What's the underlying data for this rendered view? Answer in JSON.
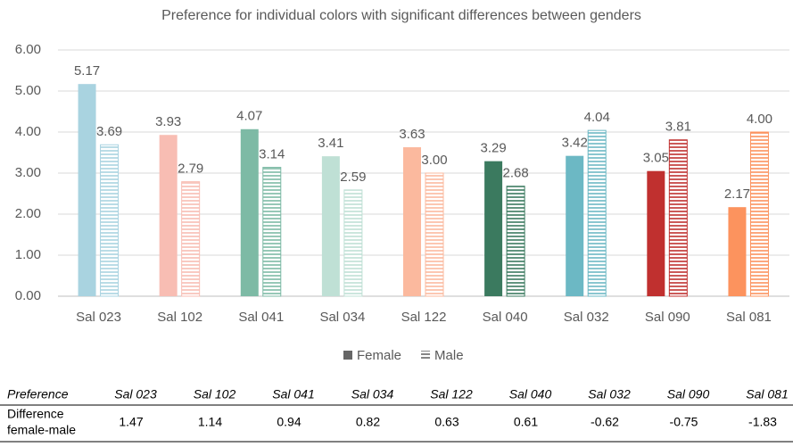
{
  "chart_data": {
    "type": "bar",
    "title": "Preference for individual colors with significant differences between genders",
    "categories": [
      "Sal 023",
      "Sal 102",
      "Sal 041",
      "Sal 034",
      "Sal 122",
      "Sal 040",
      "Sal 032",
      "Sal 090",
      "Sal 081"
    ],
    "colors": [
      "#a9d3e0",
      "#f8bdb3",
      "#7dbaa5",
      "#bfe0d5",
      "#fbb99e",
      "#3b7a5f",
      "#6cb8c4",
      "#c0302f",
      "#fc935e"
    ],
    "series": [
      {
        "name": "Female",
        "pattern": "solid",
        "legend_color": "#666666",
        "values": [
          5.17,
          3.93,
          4.07,
          3.41,
          3.63,
          3.29,
          3.42,
          3.05,
          2.17
        ],
        "value_labels": [
          "5.17",
          "3.93",
          "4.07",
          "3.41",
          "3.63",
          "3.29",
          "3.42",
          "3.05",
          "2.17"
        ]
      },
      {
        "name": "Male",
        "pattern": "horizontal-lines",
        "legend_color": "#666666",
        "values": [
          3.69,
          2.79,
          3.14,
          2.59,
          3.0,
          2.68,
          4.04,
          3.81,
          4.0
        ],
        "value_labels": [
          "3.69",
          "2.79",
          "3.14",
          "2.59",
          "3.00",
          "2.68",
          "4.04",
          "3.81",
          "4.00"
        ]
      }
    ],
    "ylim": [
      0,
      6
    ],
    "yticks": [
      {
        "value": 0,
        "label": "0.00"
      },
      {
        "value": 1,
        "label": "1.00"
      },
      {
        "value": 2,
        "label": "2.00"
      },
      {
        "value": 3,
        "label": "3.00"
      },
      {
        "value": 4,
        "label": "4.00"
      },
      {
        "value": 5,
        "label": "5.00"
      },
      {
        "value": 6,
        "label": "6.00"
      }
    ],
    "grid": true,
    "legend": "bottom"
  },
  "table": {
    "header": [
      "Preference",
      "Sal 023",
      "Sal 102",
      "Sal 041",
      "Sal 034",
      "Sal 122",
      "Sal 040",
      "Sal 032",
      "Sal 090",
      "Sal 081"
    ],
    "rows": [
      [
        [
          "Difference",
          "female-male"
        ],
        1.47,
        1.14,
        0.94,
        0.82,
        0.63,
        0.61,
        -0.62,
        -0.75,
        -1.83
      ]
    ]
  }
}
